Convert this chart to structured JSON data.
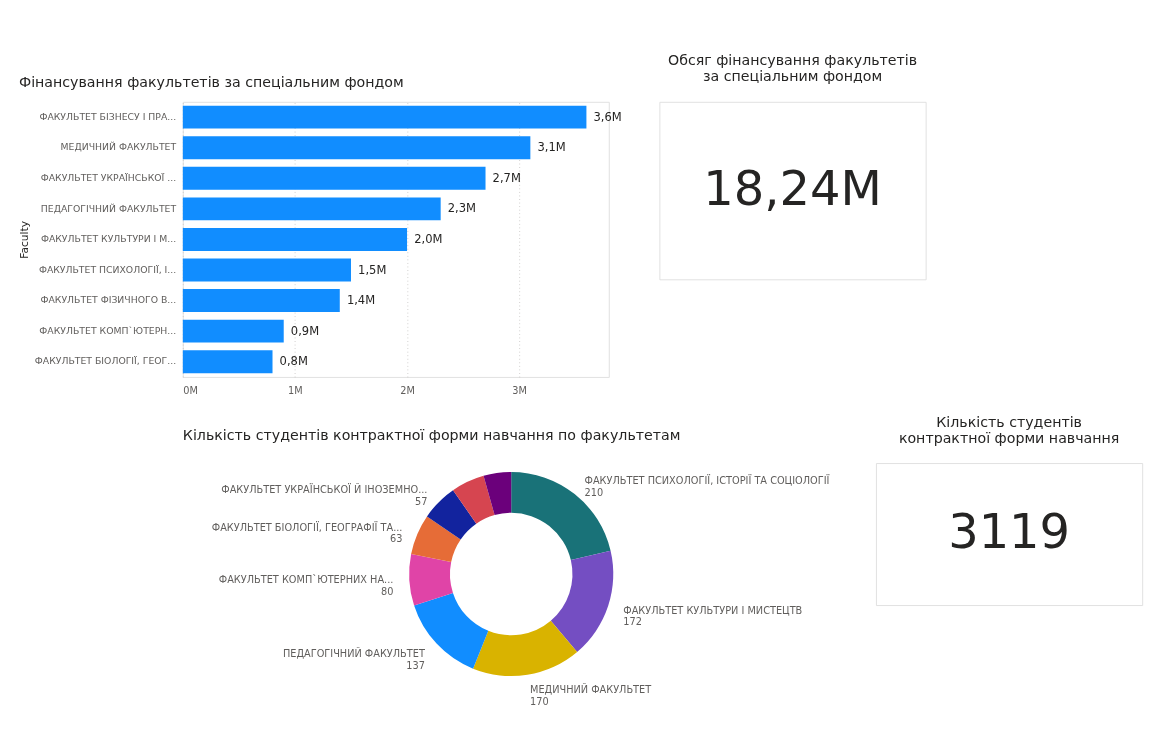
{
  "chart_data": [
    {
      "type": "bar",
      "orientation": "horizontal",
      "title": "Фінансування факультетів за спеціальним фондом",
      "ylabel": "Faculty",
      "categories": [
        "ФАКУЛЬТЕТ БІЗНЕСУ І ПРА...",
        "МЕДИЧНИЙ ФАКУЛЬТЕТ",
        "ФАКУЛЬТЕТ УКРАЇНСЬКОЇ ...",
        "ПЕДАГОГІЧНИЙ ФАКУЛЬТЕТ",
        "ФАКУЛЬТЕТ КУЛЬТУРИ І М...",
        "ФАКУЛЬТЕТ ПСИХОЛОГІЇ, І...",
        "ФАКУЛЬТЕТ ФІЗИЧНОГО В...",
        "ФАКУЛЬТЕТ КОМП`ЮТЕРН...",
        "ФАКУЛЬТЕТ БІОЛОГІЇ, ГЕОГ..."
      ],
      "values": [
        3.6,
        3.1,
        2.7,
        2.3,
        2.0,
        1.5,
        1.4,
        0.9,
        0.8
      ],
      "color": "#118dff",
      "value_labels": [
        "3,6M",
        "3,1M",
        "2,7M",
        "2,3M",
        "2,0M",
        "1,5M",
        "1,4M",
        "0,9M",
        "0,8M"
      ],
      "xlim": [
        0,
        3.8
      ],
      "xticks": [
        {
          "value": 0,
          "label": "0M"
        },
        {
          "value": 1,
          "label": "1M"
        },
        {
          "value": 2,
          "label": "2M"
        },
        {
          "value": 3,
          "label": "3M"
        }
      ],
      "grid": "x"
    },
    {
      "type": "other",
      "title": "Обсяг фінансування факультетів за спеціальним фондом",
      "annotations": [
        "18,24M"
      ]
    },
    {
      "type": "donut",
      "title": "Кількість студентів контрактної форми навчання по факультетам",
      "categories": [
        "ФАКУЛЬТЕТ ПСИХОЛОГІЇ, ІСТОРІЇ ТА СОЦІОЛОГІЇ",
        "ФАКУЛЬТЕТ КУЛЬТУРИ І МИСТЕЦТВ",
        "МЕДИЧНИЙ ФАКУЛЬТЕТ",
        "ПЕДАГОГІЧНИЙ ФАКУЛЬТЕТ",
        "ФАКУЛЬТЕТ КОМП`ЮТЕРНИХ НА...",
        "ФАКУЛЬТЕТ БІОЛОГІЇ, ГЕОГРАФІЇ ТА...",
        "ФАКУЛЬТЕТ УКРАЇНСЬКОЇ Й ІНОЗЕМНО...",
        null,
        null
      ],
      "values": [
        210,
        172,
        170,
        137,
        80,
        63,
        57,
        52,
        43
      ],
      "colors": [
        "#197278",
        "#744ec2",
        "#d9b300",
        "#118dff",
        "#e044a7",
        "#e66c37",
        "#12239e",
        "#d64550",
        "#6b007b"
      ],
      "value_labels": [
        "210",
        "172",
        "170",
        "137",
        "80",
        "63",
        "57",
        null,
        null
      ]
    },
    {
      "type": "other",
      "title": "Кількість студентів контрактної форми навчання",
      "annotations": [
        "3119"
      ]
    }
  ]
}
